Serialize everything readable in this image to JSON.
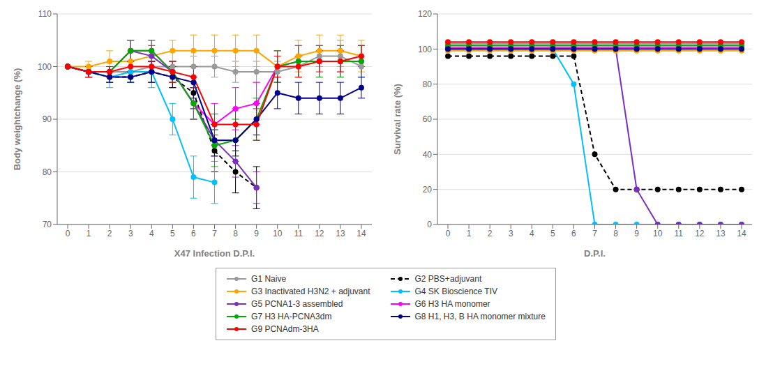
{
  "chart_data": [
    {
      "type": "line",
      "xlabel": "X47 Infection D.P.I.",
      "ylabel": "Body weightchange (%)",
      "x": [
        0,
        1,
        2,
        3,
        4,
        5,
        6,
        7,
        8,
        9,
        10,
        11,
        12,
        13,
        14
      ],
      "xlim": [
        -0.5,
        14.5
      ],
      "xticks": [
        0,
        1,
        2,
        3,
        4,
        5,
        6,
        7,
        8,
        9,
        10,
        11,
        12,
        13,
        14
      ],
      "ylim": [
        70,
        110
      ],
      "yticks": [
        70,
        80,
        90,
        100,
        110
      ],
      "grid": true,
      "legend": "bottom",
      "series": [
        {
          "name": "G1 Naive",
          "color": "#999999",
          "line_style": "solid",
          "marker": "circle",
          "values": [
            100,
            99,
            99,
            99,
            100,
            100,
            100,
            100,
            99,
            99,
            99,
            100,
            102,
            102,
            100
          ],
          "errors": [
            0,
            1,
            1,
            1,
            1,
            1,
            2,
            2,
            2,
            2,
            2,
            2,
            2,
            3,
            2
          ]
        },
        {
          "name": "G2 PBS+adjuvant",
          "color": "#000000",
          "line_style": "dashed",
          "marker": "circle",
          "values": [
            100,
            99,
            98,
            98,
            99,
            98,
            95,
            84,
            80,
            77,
            null,
            null,
            null,
            null,
            null
          ],
          "errors": [
            0,
            1,
            1,
            1,
            2,
            2,
            3,
            4,
            4,
            4,
            null,
            null,
            null,
            null,
            null
          ]
        },
        {
          "name": "G3 Inactivated H3N2 + adjuvant",
          "color": "#FFA500",
          "line_style": "solid",
          "marker": "circle",
          "values": [
            100,
            100,
            101,
            101,
            102,
            103,
            103,
            103,
            103,
            103,
            100,
            102,
            103,
            103,
            102
          ],
          "errors": [
            0,
            1,
            2,
            2,
            2,
            2,
            3,
            3,
            3,
            3,
            3,
            3,
            3,
            3,
            3
          ]
        },
        {
          "name": "G4 SK Bioscience TIV",
          "color": "#00BFFF",
          "line_style": "solid",
          "marker": "circle",
          "values": [
            100,
            99,
            98,
            99,
            99,
            90,
            79,
            78,
            null,
            null,
            null,
            null,
            null,
            null,
            null
          ],
          "errors": [
            0,
            1,
            2,
            2,
            3,
            3,
            4,
            4,
            null,
            null,
            null,
            null,
            null,
            null,
            null
          ]
        },
        {
          "name": "G5 PCNA1-3 assembled",
          "color": "#7B2FBE",
          "line_style": "solid",
          "marker": "circle",
          "values": [
            100,
            99,
            99,
            103,
            102,
            99,
            93,
            86,
            82,
            77,
            null,
            null,
            null,
            null,
            null
          ],
          "errors": [
            0,
            1,
            1,
            2,
            2,
            2,
            3,
            3,
            3,
            3,
            null,
            null,
            null,
            null,
            null
          ]
        },
        {
          "name": "G6 H3 HA monomer",
          "color": "#FF00FF",
          "line_style": "solid",
          "marker": "circle",
          "values": [
            100,
            99,
            99,
            103,
            103,
            99,
            93,
            89,
            92,
            93,
            100,
            101,
            101,
            101,
            101
          ],
          "errors": [
            0,
            1,
            1,
            2,
            2,
            2,
            3,
            4,
            4,
            4,
            3,
            3,
            3,
            3,
            3
          ]
        },
        {
          "name": "G7 H3 HA-PCNA3dm",
          "color": "#00AA00",
          "line_style": "solid",
          "marker": "circle",
          "values": [
            100,
            99,
            99,
            103,
            103,
            99,
            93,
            85,
            86,
            90,
            100,
            101,
            101,
            101,
            101
          ],
          "errors": [
            0,
            1,
            1,
            2,
            2,
            2,
            3,
            4,
            4,
            4,
            3,
            3,
            3,
            3,
            3
          ]
        },
        {
          "name": "G8 H1, H3, B HA monomer mixture",
          "color": "#00008B",
          "line_style": "solid",
          "marker": "circle",
          "values": [
            100,
            99,
            98,
            98,
            99,
            98,
            97,
            86,
            86,
            90,
            95,
            94,
            94,
            94,
            96
          ],
          "errors": [
            0,
            1,
            1,
            1,
            2,
            2,
            3,
            3,
            3,
            3,
            3,
            3,
            3,
            3,
            2
          ]
        },
        {
          "name": "G9 PCNAdm-3HA",
          "color": "#FF0000",
          "line_style": "solid",
          "marker": "circle",
          "values": [
            100,
            99,
            99,
            100,
            100,
            99,
            98,
            89,
            89,
            89,
            100,
            100,
            101,
            101,
            102
          ],
          "errors": [
            0,
            1,
            1,
            1,
            1,
            2,
            2,
            2,
            3,
            3,
            2,
            2,
            2,
            2,
            2
          ]
        }
      ]
    },
    {
      "type": "line",
      "xlabel": "D.P.I.",
      "ylabel": "Survival rate (%)",
      "x": [
        0,
        1,
        2,
        3,
        4,
        5,
        6,
        7,
        8,
        9,
        10,
        11,
        12,
        13,
        14
      ],
      "xlim": [
        -0.5,
        14.5
      ],
      "xticks": [
        0,
        1,
        2,
        3,
        4,
        5,
        6,
        7,
        8,
        9,
        10,
        11,
        12,
        13,
        14
      ],
      "ylim": [
        0,
        120
      ],
      "yticks": [
        0,
        20,
        40,
        60,
        80,
        100,
        120
      ],
      "grid": true,
      "series": [
        {
          "name": "G1 Naive",
          "color": "#999999",
          "line_style": "solid",
          "marker": "circle",
          "values": [
            103,
            103,
            103,
            103,
            103,
            103,
            103,
            103,
            103,
            103,
            103,
            103,
            103,
            103,
            103
          ]
        },
        {
          "name": "G2 PBS+adjuvant",
          "color": "#000000",
          "line_style": "dashed",
          "marker": "circle",
          "values": [
            96,
            96,
            96,
            96,
            96,
            96,
            96,
            40,
            20,
            20,
            20,
            20,
            20,
            20,
            20
          ]
        },
        {
          "name": "G3 Inactivated H3N2 + adjuvant",
          "color": "#FFA500",
          "line_style": "solid",
          "marker": "circle",
          "values": [
            99,
            99,
            99,
            99,
            99,
            99,
            99,
            99,
            99,
            99,
            99,
            99,
            99,
            99,
            99
          ]
        },
        {
          "name": "G4 SK Bioscience TIV",
          "color": "#00BFFF",
          "line_style": "solid",
          "marker": "circle",
          "values": [
            100,
            100,
            100,
            100,
            100,
            100,
            80,
            0,
            0,
            0,
            0,
            0,
            0,
            0,
            0
          ]
        },
        {
          "name": "G5 PCNA1-3 assembled",
          "color": "#7B2FBE",
          "line_style": "solid",
          "marker": "circle",
          "values": [
            100,
            100,
            100,
            100,
            100,
            100,
            100,
            100,
            100,
            20,
            0,
            0,
            0,
            0,
            0
          ]
        },
        {
          "name": "G6 H3 HA monomer",
          "color": "#FF00FF",
          "line_style": "solid",
          "marker": "circle",
          "values": [
            101,
            101,
            101,
            101,
            101,
            101,
            101,
            101,
            101,
            101,
            101,
            101,
            101,
            101,
            101
          ]
        },
        {
          "name": "G7 H3 HA-PCNA3dm",
          "color": "#00AA00",
          "line_style": "solid",
          "marker": "circle",
          "values": [
            102,
            102,
            102,
            102,
            102,
            102,
            102,
            102,
            102,
            102,
            102,
            102,
            102,
            102,
            102
          ]
        },
        {
          "name": "G8 H1, H3, B HA monomer mixture",
          "color": "#00008B",
          "line_style": "solid",
          "marker": "circle",
          "values": [
            100,
            100,
            100,
            100,
            100,
            100,
            100,
            100,
            100,
            100,
            100,
            100,
            100,
            100,
            100
          ]
        },
        {
          "name": "G9 PCNAdm-3HA",
          "color": "#FF0000",
          "line_style": "solid",
          "marker": "circle",
          "values": [
            104,
            104,
            104,
            104,
            104,
            104,
            104,
            104,
            104,
            104,
            104,
            104,
            104,
            104,
            104
          ]
        }
      ]
    }
  ]
}
